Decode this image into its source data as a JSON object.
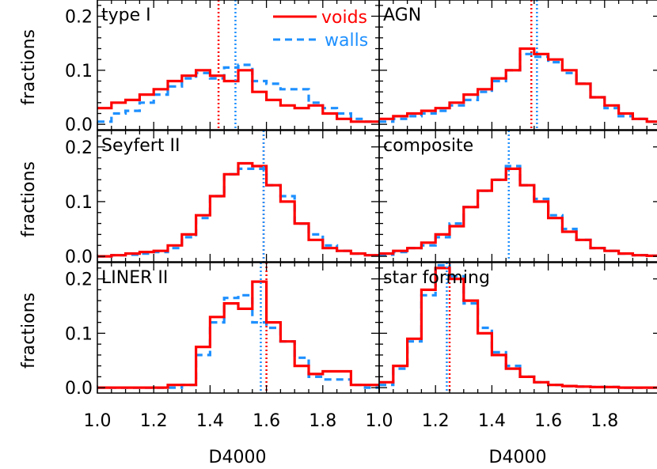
{
  "chart_data": {
    "type": "line",
    "xlabel": "D4000",
    "ylabel": "fractions",
    "xlim": [
      1.0,
      2.0
    ],
    "ylim": [
      -0.01,
      0.23
    ],
    "x_ticks": [
      "1.0",
      "1.2",
      "1.4",
      "1.6",
      "1.8"
    ],
    "y_ticks": [
      "0.0",
      "0.1",
      "0.2"
    ],
    "grid": false,
    "legend_position": "top-right of first panel",
    "colors": {
      "voids": "#ff0000",
      "walls": "#1e90ff"
    },
    "legend": [
      {
        "name": "voids",
        "style": "solid",
        "color": "#ff0000"
      },
      {
        "name": "walls",
        "style": "dashed",
        "color": "#1e90ff"
      }
    ],
    "bin_edges": [
      1.0,
      1.05,
      1.1,
      1.15,
      1.2,
      1.25,
      1.3,
      1.35,
      1.4,
      1.45,
      1.5,
      1.55,
      1.6,
      1.65,
      1.7,
      1.75,
      1.8,
      1.85,
      1.9,
      1.95,
      2.0
    ],
    "panels": [
      {
        "label": "type I",
        "series": [
          {
            "name": "voids",
            "values": [
              0.03,
              0.04,
              0.045,
              0.055,
              0.065,
              0.08,
              0.09,
              0.1,
              0.09,
              0.08,
              0.1,
              0.06,
              0.045,
              0.035,
              0.03,
              0.035,
              0.02,
              0.01,
              0.005,
              0.005
            ]
          },
          {
            "name": "walls",
            "values": [
              0.005,
              0.02,
              0.025,
              0.04,
              0.055,
              0.07,
              0.085,
              0.095,
              0.085,
              0.105,
              0.11,
              0.08,
              0.075,
              0.065,
              0.065,
              0.04,
              0.03,
              0.02,
              0.01,
              0.005
            ]
          }
        ],
        "medians": {
          "voids": 1.43,
          "walls": 1.49
        }
      },
      {
        "label": "AGN",
        "series": [
          {
            "name": "voids",
            "values": [
              0.01,
              0.015,
              0.02,
              0.025,
              0.03,
              0.04,
              0.055,
              0.065,
              0.085,
              0.1,
              0.14,
              0.13,
              0.12,
              0.1,
              0.075,
              0.05,
              0.035,
              0.02,
              0.01,
              0.005
            ]
          },
          {
            "name": "walls",
            "values": [
              0.005,
              0.01,
              0.015,
              0.02,
              0.025,
              0.035,
              0.045,
              0.06,
              0.08,
              0.1,
              0.13,
              0.125,
              0.115,
              0.095,
              0.075,
              0.05,
              0.03,
              0.015,
              0.01,
              0.005
            ]
          }
        ],
        "medians": {
          "voids": 1.54,
          "walls": 1.56
        }
      },
      {
        "label": "Seyfert II",
        "series": [
          {
            "name": "voids",
            "values": [
              0.0,
              0.002,
              0.005,
              0.008,
              0.01,
              0.02,
              0.04,
              0.075,
              0.11,
              0.15,
              0.17,
              0.165,
              0.13,
              0.1,
              0.06,
              0.03,
              0.015,
              0.01,
              0.005,
              0.002
            ]
          },
          {
            "name": "walls",
            "values": [
              0.0,
              0.002,
              0.003,
              0.005,
              0.008,
              0.015,
              0.035,
              0.07,
              0.11,
              0.15,
              0.16,
              0.16,
              0.13,
              0.11,
              0.06,
              0.04,
              0.02,
              0.01,
              0.005,
              0.002
            ]
          }
        ],
        "medians": {
          "voids": 1.59,
          "walls": 1.59
        }
      },
      {
        "label": "composite",
        "series": [
          {
            "name": "voids",
            "values": [
              0.005,
              0.01,
              0.015,
              0.025,
              0.04,
              0.055,
              0.09,
              0.12,
              0.14,
              0.16,
              0.13,
              0.1,
              0.07,
              0.045,
              0.03,
              0.015,
              0.01,
              0.005,
              0.002,
              0.001
            ]
          },
          {
            "name": "walls",
            "values": [
              0.003,
              0.008,
              0.015,
              0.02,
              0.035,
              0.06,
              0.09,
              0.12,
              0.14,
              0.165,
              0.13,
              0.105,
              0.075,
              0.05,
              0.03,
              0.015,
              0.01,
              0.005,
              0.002,
              0.001
            ]
          }
        ],
        "medians": {
          "voids": 1.46,
          "walls": 1.46
        }
      },
      {
        "label": "LINER II",
        "series": [
          {
            "name": "voids",
            "values": [
              0.0,
              0.0,
              0.0,
              0.0,
              0.0,
              0.005,
              0.005,
              0.075,
              0.13,
              0.155,
              0.145,
              0.195,
              0.12,
              0.085,
              0.04,
              0.025,
              0.03,
              0.03,
              0.005,
              0.005
            ]
          },
          {
            "name": "walls",
            "values": [
              0.0,
              0.0,
              0.0,
              0.0,
              0.0,
              0.0,
              0.005,
              0.06,
              0.12,
              0.165,
              0.17,
              0.12,
              0.11,
              0.085,
              0.055,
              0.02,
              0.015,
              0.015,
              0.005,
              0.0
            ]
          }
        ],
        "medians": {
          "voids": 1.6,
          "walls": 1.58
        }
      },
      {
        "label": "star forming",
        "series": [
          {
            "name": "voids",
            "values": [
              0.01,
              0.04,
              0.09,
              0.18,
              0.22,
              0.2,
              0.16,
              0.1,
              0.06,
              0.035,
              0.02,
              0.01,
              0.005,
              0.003,
              0.002,
              0.001,
              0.001,
              0.0,
              0.0,
              0.0
            ]
          },
          {
            "name": "walls",
            "values": [
              0.005,
              0.035,
              0.085,
              0.17,
              0.225,
              0.205,
              0.155,
              0.11,
              0.065,
              0.04,
              0.02,
              0.01,
              0.005,
              0.003,
              0.002,
              0.001,
              0.001,
              0.0,
              0.0,
              0.0
            ]
          }
        ],
        "medians": {
          "voids": 1.25,
          "walls": 1.24
        }
      }
    ]
  }
}
